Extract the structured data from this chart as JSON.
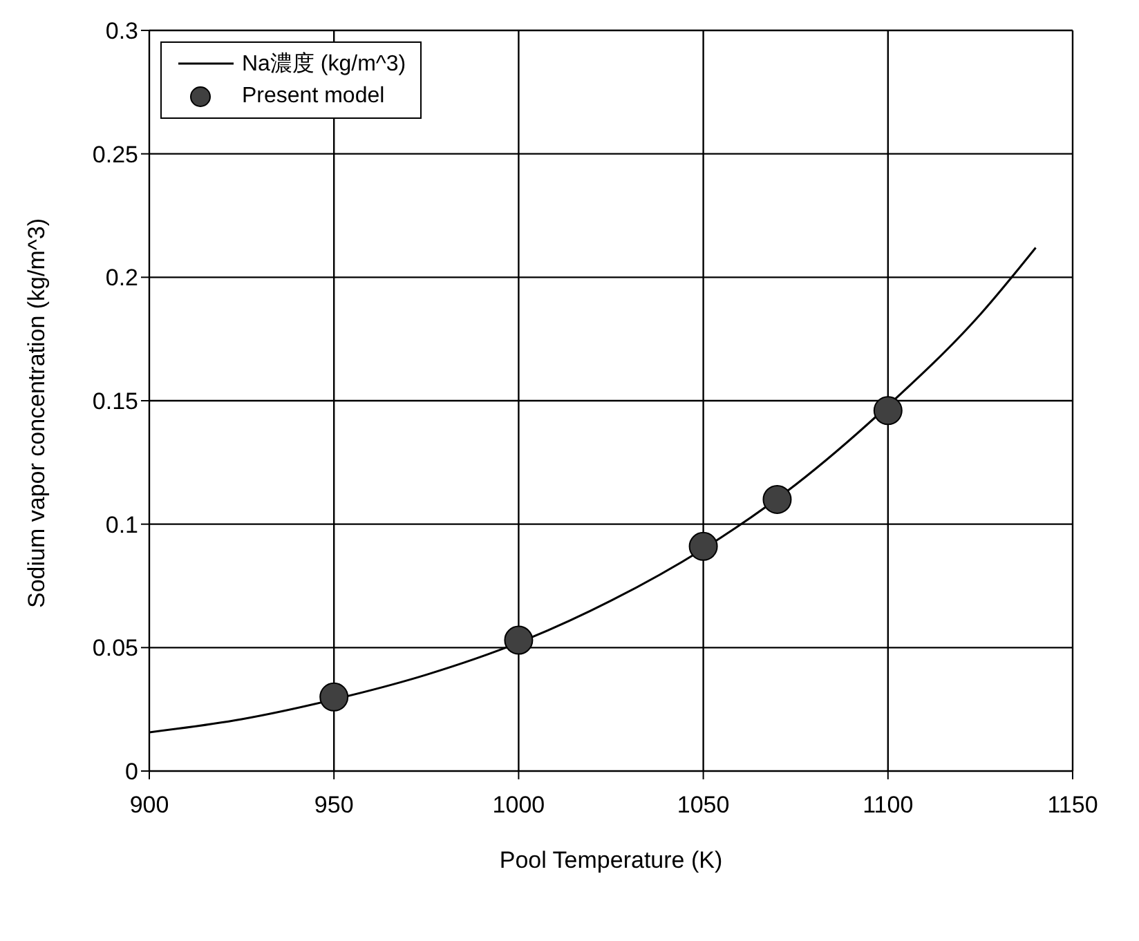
{
  "chart_data": {
    "type": "line",
    "xlabel": "Pool Temperature (K)",
    "ylabel": "Sodium vapor concentration (kg/m^3)",
    "xlim": [
      900,
      1150
    ],
    "xticks": [
      900,
      950,
      1000,
      1050,
      1100,
      1150
    ],
    "ylim": [
      0,
      0.3
    ],
    "yticks": [
      0,
      0.05,
      0.1,
      0.15,
      0.2,
      0.25,
      0.3
    ],
    "grid": true,
    "legend": "top left",
    "series": [
      {
        "name": "Na濃度 (kg/m^3)",
        "color": "#000000",
        "marker": "none",
        "x": [
          900,
          925,
          950,
          975,
          1000,
          1025,
          1050,
          1075,
          1100,
          1125,
          1140
        ],
        "values": [
          0.0157,
          0.021,
          0.029,
          0.039,
          0.052,
          0.069,
          0.09,
          0.116,
          0.148,
          0.185,
          0.212
        ]
      },
      {
        "type": "scatter",
        "name": "Present model",
        "color": "#404040",
        "marker": "circle",
        "x": [
          950,
          1000,
          1050,
          1070,
          1100
        ],
        "values": [
          0.03,
          0.053,
          0.091,
          0.11,
          0.146
        ]
      }
    ]
  }
}
